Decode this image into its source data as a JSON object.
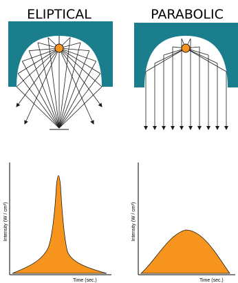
{
  "panels": [
    {
      "title": "ELIPTICAL",
      "xlabel": "Time (sec.)",
      "ylabel": "Intensity (W / cm²)"
    },
    {
      "title": "PARABOLIC",
      "xlabel": "Time (sec.)",
      "ylabel": "Intensity (W / cm²)"
    }
  ],
  "colors": {
    "reflector": "#1b7e8c",
    "lamp": "#f7941d",
    "curve_fill": "#f7941d",
    "lines": "#1a1a1a"
  }
}
